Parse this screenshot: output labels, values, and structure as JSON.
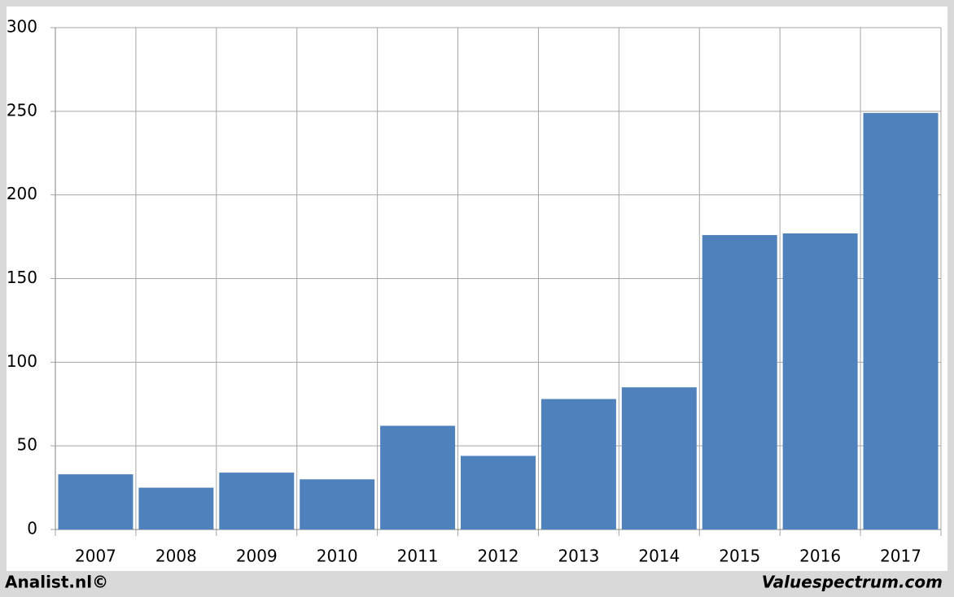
{
  "chart_data": {
    "type": "bar",
    "categories": [
      "2007",
      "2008",
      "2009",
      "2010",
      "2011",
      "2012",
      "2013",
      "2014",
      "2015",
      "2016",
      "2017"
    ],
    "values": [
      33,
      25,
      34,
      30,
      62,
      44,
      78,
      85,
      176,
      177,
      249
    ],
    "color": "#4f81bd",
    "ylim": [
      0,
      300
    ],
    "yticks": [
      0,
      50,
      100,
      150,
      200,
      250,
      300
    ],
    "grid": true
  },
  "footer": {
    "left": "Analist.nl©",
    "right": "Valuespectrum.com"
  }
}
